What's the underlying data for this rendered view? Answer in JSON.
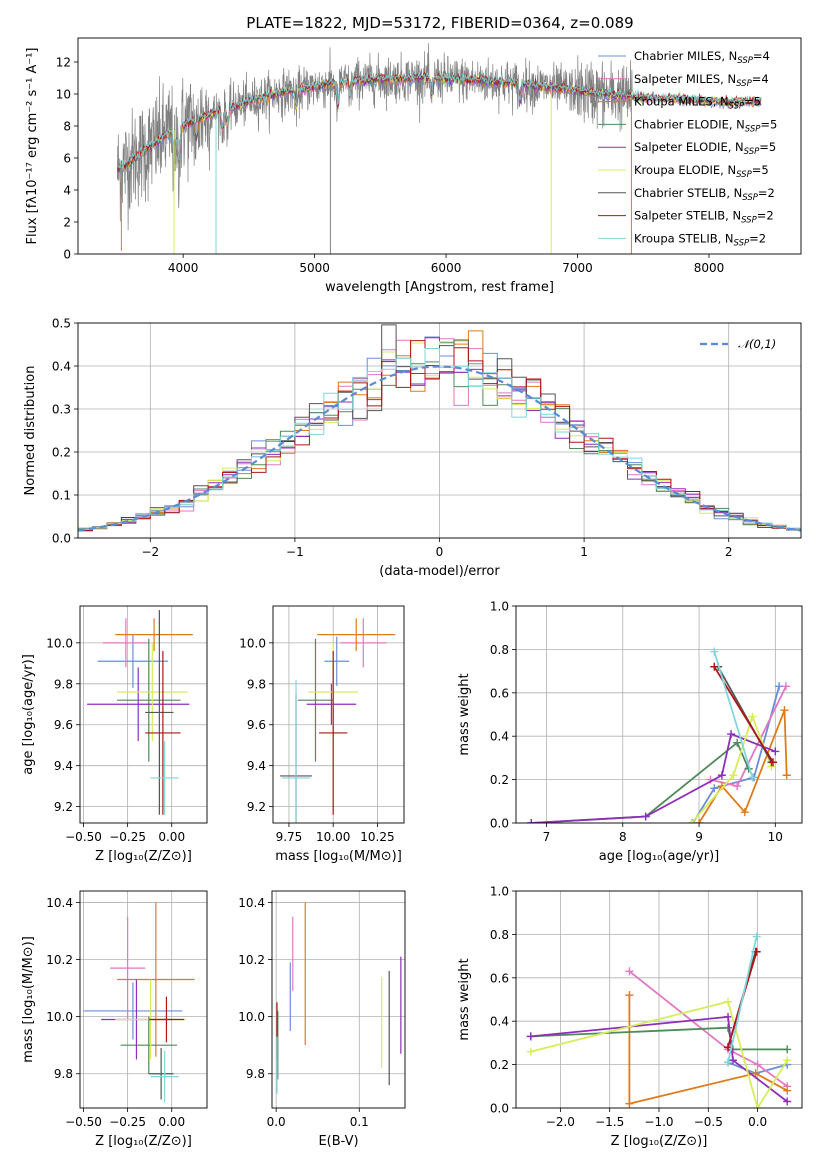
{
  "title": "PLATE=1822, MJD=53172, FIBERID=0364, z=0.089",
  "colors": {
    "Chabrier MILES": "#6a8fd8",
    "Salpeter MILES": "#e377c2",
    "Kroupa MILES": "#e07b1a",
    "Chabrier ELODIE": "#4f8a5b",
    "Salpeter ELODIE": "#8e2fb8",
    "Kroupa ELODIE": "#d8ec5a",
    "Chabrier STELIB": "#555555",
    "Salpeter STELIB": "#b01515",
    "Kroupa STELIB": "#7fd7dc"
  },
  "chart_data": [
    {
      "id": "spectrum",
      "type": "line",
      "xlabel": "wavelength [Angstrom, rest frame]",
      "ylabel": "Flux [fλ10⁻¹⁷ erg cm⁻² s⁻¹ A⁻¹]",
      "xlim": [
        3200,
        8700
      ],
      "ylim": [
        0,
        13.5
      ],
      "xticks": [
        4000,
        5000,
        6000,
        7000,
        8000
      ],
      "yticks": [
        0,
        2,
        4,
        6,
        8,
        10,
        12
      ],
      "grid": false,
      "legend_position": "right",
      "legend": [
        {
          "label": "Chabrier MILES, N",
          "sub": "SSP",
          "suffix": "=4",
          "color": "#6a8fd8"
        },
        {
          "label": "Salpeter MILES, N",
          "sub": "SSP",
          "suffix": "=4",
          "color": "#e377c2"
        },
        {
          "label": "Kroupa MILES, N",
          "sub": "SSP",
          "suffix": "=5",
          "color": "#e07b1a"
        },
        {
          "label": "Chabrier ELODIE, N",
          "sub": "SSP",
          "suffix": "=5",
          "color": "#4f8a5b"
        },
        {
          "label": "Salpeter ELODIE, N",
          "sub": "SSP",
          "suffix": "=5",
          "color": "#8e2fb8"
        },
        {
          "label": "Kroupa ELODIE, N",
          "sub": "SSP",
          "suffix": "=5",
          "color": "#d8ec5a"
        },
        {
          "label": "Chabrier STELIB, N",
          "sub": "SSP",
          "suffix": "=2",
          "color": "#555555"
        },
        {
          "label": "Salpeter STELIB, N",
          "sub": "SSP",
          "suffix": "=2",
          "color": "#b01515"
        },
        {
          "label": "Kroupa STELIB, N",
          "sub": "SSP",
          "suffix": "=2",
          "color": "#7fd7dc"
        }
      ],
      "data_color": "#808080",
      "continuum": {
        "x": [
          3500,
          3700,
          3900,
          4100,
          4300,
          4500,
          4700,
          4900,
          5100,
          5300,
          5500,
          5700,
          5900,
          6100,
          6300,
          6500,
          6700,
          6900,
          7100,
          7300,
          7500,
          7700,
          7900,
          8100,
          8300,
          8400
        ],
        "y": [
          5.2,
          6.4,
          7.6,
          8.4,
          9.0,
          9.5,
          10.0,
          10.3,
          10.6,
          10.8,
          10.9,
          11.0,
          11.0,
          10.9,
          10.8,
          10.7,
          10.5,
          10.3,
          10.1,
          9.9,
          9.8,
          9.7,
          9.6,
          9.5,
          9.5,
          9.5
        ]
      },
      "data_range": [
        3500,
        7420
      ],
      "model_range": [
        3500,
        8400
      ],
      "spikes": [
        {
          "x": 3530,
          "y": 0.2,
          "color": "#e07b1a"
        },
        {
          "x": 3930,
          "y": 0.0,
          "color": "#d8ec5a"
        },
        {
          "x": 4250,
          "y": 0.0,
          "color": "#7fd7dc"
        },
        {
          "x": 5120,
          "y": 0.0,
          "color": "#808080"
        },
        {
          "x": 6800,
          "y": 0.0,
          "color": "#d8ec5a"
        },
        {
          "x": 7410,
          "y": 0.0,
          "color": "#e07b1a"
        }
      ]
    },
    {
      "id": "residuals",
      "type": "histogram",
      "xlabel": "(data-model)/error",
      "ylabel": "Normed distribution",
      "xlim": [
        -2.5,
        2.5
      ],
      "ylim": [
        0,
        0.5
      ],
      "xticks": [
        -2,
        -1,
        0,
        1,
        2
      ],
      "yticks": [
        0.0,
        0.1,
        0.2,
        0.3,
        0.4,
        0.5
      ],
      "grid": true,
      "legend_position": "top-right",
      "legend_label": "𝒩(0,1)",
      "gaussian_color": "#5b8bd8",
      "bins": [
        -2.5,
        2.5,
        50
      ]
    },
    {
      "id": "age-vs-z",
      "type": "errorbar",
      "xlabel": "Z [log₁₀(Z/Z⊙)]",
      "ylabel": "age  [log₁₀(age/yr)]",
      "xlim": [
        -0.52,
        0.2
      ],
      "ylim": [
        9.12,
        10.18
      ],
      "xticks": [
        -0.5,
        -0.25,
        0.0
      ],
      "xticklabels": [
        "−0.50",
        "−0.25",
        "0.00"
      ],
      "yticks": [
        9.2,
        9.4,
        9.6,
        9.8,
        10.0
      ],
      "grid": true,
      "points": [
        {
          "model": "Chabrier MILES",
          "x": -0.22,
          "xerr": 0.2,
          "y": 9.91,
          "yerr": 0.13
        },
        {
          "model": "Salpeter MILES",
          "x": -0.26,
          "xerr": 0.13,
          "y": 10.0,
          "yerr": 0.12
        },
        {
          "model": "Kroupa MILES",
          "x": -0.1,
          "xerr": 0.22,
          "y": 10.04,
          "yerr": 0.08
        },
        {
          "model": "Chabrier ELODIE",
          "x": -0.13,
          "xerr": 0.18,
          "y": 9.72,
          "yerr": 0.3
        },
        {
          "model": "Salpeter ELODIE",
          "x": -0.19,
          "xerr": 0.29,
          "y": 9.7,
          "yerr": 0.18
        },
        {
          "model": "Kroupa ELODIE",
          "x": -0.11,
          "xerr": 0.2,
          "y": 9.76,
          "yerr": 0.24
        },
        {
          "model": "Chabrier STELIB",
          "x": -0.07,
          "xerr": 0.08,
          "y": 9.66,
          "yerr": 0.5
        },
        {
          "model": "Salpeter STELIB",
          "x": -0.05,
          "xerr": 0.1,
          "y": 9.56,
          "yerr": 0.4
        },
        {
          "model": "Kroupa STELIB",
          "x": -0.04,
          "xerr": 0.08,
          "y": 9.34,
          "yerr": 0.18
        }
      ]
    },
    {
      "id": "age-vs-mass",
      "type": "errorbar",
      "xlabel": "mass [log₁₀(M/M⊙)]",
      "ylabel": "",
      "xlim": [
        9.66,
        10.4
      ],
      "ylim": [
        9.12,
        10.18
      ],
      "xticks": [
        9.75,
        10.0,
        10.25
      ],
      "xticklabels": [
        "9.75",
        "10.00",
        "10.25"
      ],
      "yticks": [
        9.2,
        9.4,
        9.6,
        9.8,
        10.0
      ],
      "grid": true,
      "points": [
        {
          "model": "Chabrier MILES",
          "x": 10.02,
          "xerr": 0.07,
          "y": 9.91,
          "yerr": 0.12
        },
        {
          "model": "Salpeter MILES",
          "x": 10.17,
          "xerr": 0.13,
          "y": 10.0,
          "yerr": 0.12
        },
        {
          "model": "Kroupa MILES",
          "x": 10.13,
          "xerr": 0.22,
          "y": 10.04,
          "yerr": 0.08
        },
        {
          "model": "Chabrier ELODIE",
          "x": 9.9,
          "xerr": 0.1,
          "y": 9.72,
          "yerr": 0.3
        },
        {
          "model": "Salpeter ELODIE",
          "x": 9.99,
          "xerr": 0.14,
          "y": 9.7,
          "yerr": 0.1
        },
        {
          "model": "Kroupa ELODIE",
          "x": 10.0,
          "xerr": 0.14,
          "y": 9.76,
          "yerr": 0.24
        },
        {
          "model": "Chabrier STELIB",
          "x": 9.79,
          "xerr": 0.09,
          "y": 9.35,
          "yerr": 0.4
        },
        {
          "model": "Salpeter STELIB",
          "x": 10.0,
          "xerr": 0.08,
          "y": 9.56,
          "yerr": 0.4
        },
        {
          "model": "Kroupa STELIB",
          "x": 9.79,
          "xerr": 0.08,
          "y": 9.34,
          "yerr": 0.48
        }
      ]
    },
    {
      "id": "weight-vs-age",
      "type": "line",
      "xlabel": "age  [log₁₀(age/yr)]",
      "ylabel": "mass weight",
      "xlim": [
        6.6,
        10.35
      ],
      "ylim": [
        0,
        1.0
      ],
      "xticks": [
        7,
        8,
        9,
        10
      ],
      "yticks": [
        0.0,
        0.2,
        0.4,
        0.6,
        0.8,
        1.0
      ],
      "grid": true,
      "series": [
        {
          "model": "Chabrier MILES",
          "x": [
            8.92,
            9.2,
            9.72,
            10.05
          ],
          "y": [
            0.0,
            0.16,
            0.21,
            0.63
          ]
        },
        {
          "model": "Salpeter MILES",
          "x": [
            9.15,
            9.5,
            10.14
          ],
          "y": [
            0.2,
            0.17,
            0.63
          ]
        },
        {
          "model": "Kroupa MILES",
          "x": [
            9.0,
            9.3,
            9.6,
            10.12,
            10.15
          ],
          "y": [
            0.0,
            0.17,
            0.05,
            0.52,
            0.22
          ]
        },
        {
          "model": "Chabrier ELODIE",
          "x": [
            6.8,
            8.3,
            9.5,
            9.65
          ],
          "y": [
            0.0,
            0.03,
            0.37,
            0.25
          ]
        },
        {
          "model": "Salpeter ELODIE",
          "x": [
            6.8,
            8.3,
            9.3,
            9.42,
            10.0
          ],
          "y": [
            0.0,
            0.03,
            0.22,
            0.41,
            0.33
          ]
        },
        {
          "model": "Kroupa ELODIE",
          "x": [
            8.9,
            9.45,
            9.7,
            9.95
          ],
          "y": [
            0.0,
            0.22,
            0.49,
            0.26
          ]
        },
        {
          "model": "Chabrier STELIB",
          "x": [
            9.25,
            9.95
          ],
          "y": [
            0.72,
            0.28
          ]
        },
        {
          "model": "Salpeter STELIB",
          "x": [
            9.2,
            9.97
          ],
          "y": [
            0.72,
            0.28
          ]
        },
        {
          "model": "Kroupa STELIB",
          "x": [
            9.2,
            9.7
          ],
          "y": [
            0.79,
            0.21
          ]
        }
      ]
    },
    {
      "id": "mass-vs-z",
      "type": "errorbar",
      "xlabel": "Z [log₁₀(Z/Z⊙)]",
      "ylabel": "mass [log₁₀(M/M⊙)]",
      "xlim": [
        -0.52,
        0.2
      ],
      "ylim": [
        9.68,
        10.44
      ],
      "xticks": [
        -0.5,
        -0.25,
        0.0
      ],
      "xticklabels": [
        "−0.50",
        "−0.25",
        "0.00"
      ],
      "yticks": [
        9.8,
        10.0,
        10.2,
        10.4
      ],
      "grid": true,
      "points": [
        {
          "model": "Chabrier MILES",
          "x": -0.22,
          "xerr": 0.28,
          "y": 10.02,
          "yerr": 0.1
        },
        {
          "model": "Salpeter MILES",
          "x": -0.25,
          "xerr": 0.1,
          "y": 10.17,
          "yerr": 0.18
        },
        {
          "model": "Kroupa MILES",
          "x": -0.09,
          "xerr": 0.22,
          "y": 10.13,
          "yerr": 0.27
        },
        {
          "model": "Chabrier ELODIE",
          "x": -0.13,
          "xerr": 0.16,
          "y": 9.9,
          "yerr": 0.1
        },
        {
          "model": "Salpeter ELODIE",
          "x": -0.2,
          "xerr": 0.2,
          "y": 9.99,
          "yerr": 0.14
        },
        {
          "model": "Kroupa ELODIE",
          "x": -0.12,
          "xerr": 0.2,
          "y": 9.99,
          "yerr": 0.14
        },
        {
          "model": "Chabrier STELIB",
          "x": -0.06,
          "xerr": 0.07,
          "y": 9.8,
          "yerr": 0.09
        },
        {
          "model": "Salpeter STELIB",
          "x": -0.03,
          "xerr": 0.1,
          "y": 9.99,
          "yerr": 0.08
        },
        {
          "model": "Kroupa STELIB",
          "x": -0.04,
          "xerr": 0.08,
          "y": 9.79,
          "yerr": 0.09
        }
      ]
    },
    {
      "id": "mass-vs-ebv",
      "type": "errorbar",
      "xlabel": "E(B-V)",
      "ylabel": "",
      "xlim": [
        -0.005,
        0.155
      ],
      "ylim": [
        9.68,
        10.44
      ],
      "xticks": [
        0.0,
        0.1
      ],
      "xticklabels": [
        "0.0",
        "0.1"
      ],
      "yticks": [
        9.8,
        10.0,
        10.2,
        10.4
      ],
      "grid": true,
      "points": [
        {
          "model": "Chabrier MILES",
          "x": 0.017,
          "xerr": 0,
          "y": 10.07,
          "yerr": 0.12
        },
        {
          "model": "Salpeter MILES",
          "x": 0.02,
          "xerr": 0,
          "y": 10.22,
          "yerr": 0.13
        },
        {
          "model": "Kroupa MILES",
          "x": 0.035,
          "xerr": 0,
          "y": 10.15,
          "yerr": 0.25
        },
        {
          "model": "Chabrier ELODIE",
          "x": 0.002,
          "xerr": 0,
          "y": 9.9,
          "yerr": 0.12
        },
        {
          "model": "Salpeter ELODIE",
          "x": 0.15,
          "xerr": 0,
          "y": 10.04,
          "yerr": 0.17
        },
        {
          "model": "Kroupa ELODIE",
          "x": 0.127,
          "xerr": 0,
          "y": 9.98,
          "yerr": 0.16
        },
        {
          "model": "Chabrier STELIB",
          "x": 0.136,
          "xerr": 0,
          "y": 9.96,
          "yerr": 0.2
        },
        {
          "model": "Salpeter STELIB",
          "x": 0.001,
          "xerr": 0,
          "y": 9.95,
          "yerr": 0.1
        },
        {
          "model": "Kroupa STELIB",
          "x": 0.001,
          "xerr": 0,
          "y": 9.83,
          "yerr": 0.1
        }
      ]
    },
    {
      "id": "weight-vs-z",
      "type": "line",
      "xlabel": "Z [log₁₀(Z/Z⊙)]",
      "ylabel": "mass weight",
      "xlim": [
        -2.45,
        0.45
      ],
      "ylim": [
        0,
        1.0
      ],
      "xticks": [
        -2.0,
        -1.5,
        -1.0,
        -0.5,
        0.0
      ],
      "xticklabels": [
        "−2.0",
        "−1.5",
        "−1.0",
        "−0.5",
        "0.0"
      ],
      "yticks": [
        0.0,
        0.2,
        0.4,
        0.6,
        0.8,
        1.0
      ],
      "grid": true,
      "series": [
        {
          "model": "Chabrier MILES",
          "x": [
            -0.3,
            -0.02,
            0.3
          ],
          "y": [
            0.21,
            0.16,
            0.2
          ]
        },
        {
          "model": "Salpeter MILES",
          "x": [
            -1.3,
            -0.3,
            0.0,
            0.3
          ],
          "y": [
            0.63,
            0.27,
            0.2,
            0.1
          ]
        },
        {
          "model": "Kroupa MILES",
          "x": [
            -1.3,
            -1.3,
            -0.02,
            0.3
          ],
          "y": [
            0.52,
            0.02,
            0.16,
            0.08
          ]
        },
        {
          "model": "Chabrier ELODIE",
          "x": [
            -2.3,
            -0.3,
            -0.25,
            0.3
          ],
          "y": [
            0.33,
            0.37,
            0.27,
            0.27
          ]
        },
        {
          "model": "Salpeter ELODIE",
          "x": [
            -2.3,
            -0.3,
            -0.25,
            0.3
          ],
          "y": [
            0.33,
            0.42,
            0.22,
            0.03
          ]
        },
        {
          "model": "Kroupa ELODIE",
          "x": [
            -2.3,
            -0.3,
            0.0,
            0.3
          ],
          "y": [
            0.26,
            0.49,
            0.0,
            0.22
          ]
        },
        {
          "model": "Chabrier STELIB",
          "x": [
            -0.3,
            -0.02
          ],
          "y": [
            0.28,
            0.72
          ]
        },
        {
          "model": "Salpeter STELIB",
          "x": [
            -0.3,
            -0.01
          ],
          "y": [
            0.28,
            0.72
          ]
        },
        {
          "model": "Kroupa STELIB",
          "x": [
            -0.3,
            -0.01
          ],
          "y": [
            0.21,
            0.79
          ]
        }
      ]
    }
  ]
}
